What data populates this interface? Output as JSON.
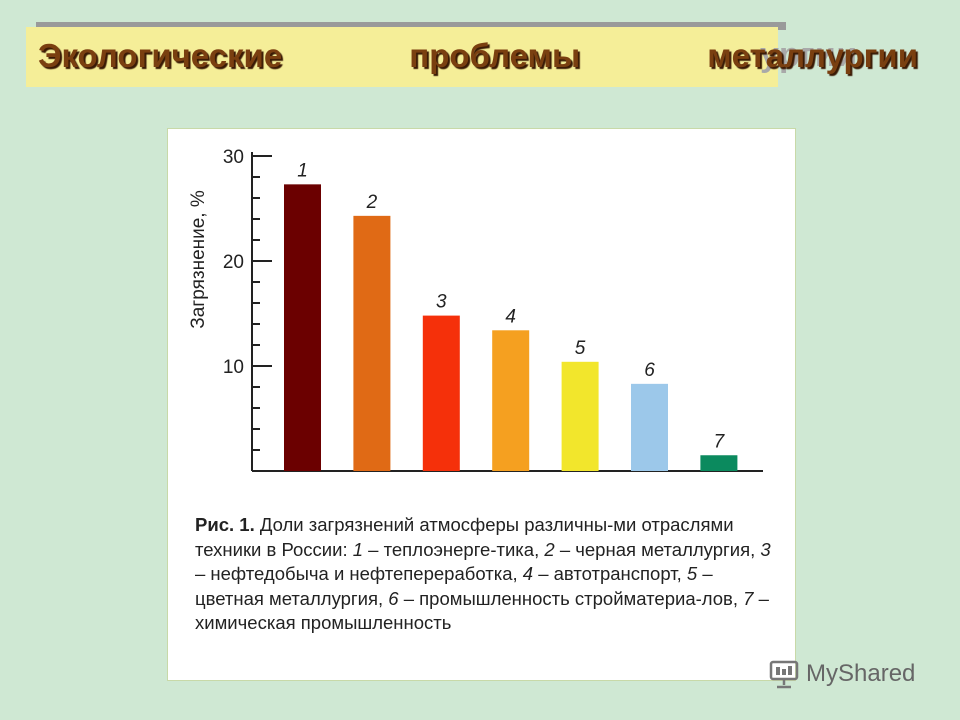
{
  "slide_title": "Экологические проблемы металлургии",
  "title_ghost": "ургии",
  "chart_data": {
    "type": "bar",
    "categories": [
      "1",
      "2",
      "3",
      "4",
      "5",
      "6",
      "7"
    ],
    "values": [
      27.3,
      24.3,
      14.8,
      13.4,
      10.4,
      8.3,
      1.5
    ],
    "colors": [
      "#6b0000",
      "#e06a15",
      "#f5300a",
      "#f5a020",
      "#f2e62c",
      "#9cc8ea",
      "#0b8a5e"
    ],
    "ylabel": "Загрязнение, %",
    "yticks": [
      10,
      20,
      30
    ],
    "ylim": [
      0,
      30
    ],
    "grid": false
  },
  "caption": {
    "fig_label": "Рис. 1.",
    "segments": [
      " Доли загрязнений атмосферы различны-ми отраслями техники в России: ",
      "1",
      " – теплоэнерге-тика, ",
      "2",
      " – черная металлургия, ",
      "3",
      " – нефтедобыча и нефтепереработка, ",
      "4",
      " – автотранспорт, ",
      "5",
      " – цветная металлургия, ",
      "6",
      " – промышленность стройматериа-лов, ",
      "7",
      " – химическая промышленность"
    ]
  },
  "watermark": {
    "text": "MyShared",
    "icon": "presentation-screen-icon"
  }
}
